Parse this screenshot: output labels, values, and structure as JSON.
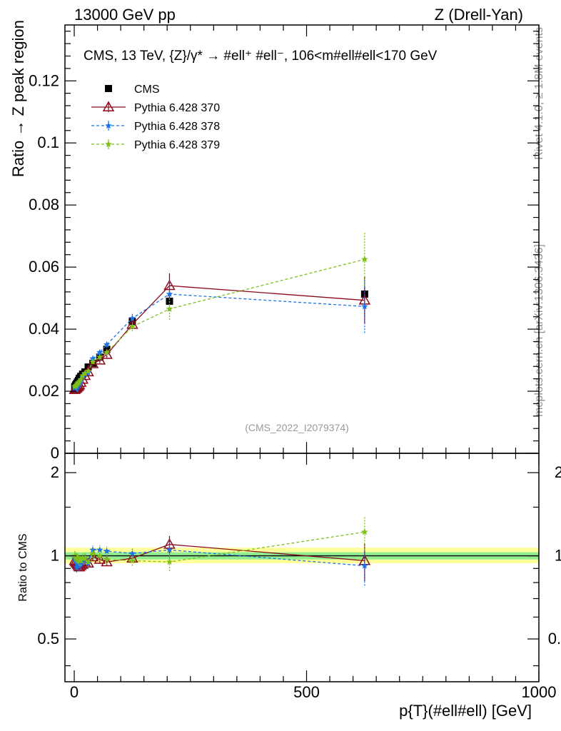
{
  "header": {
    "left": "13000 GeV pp",
    "right": "Z (Drell-Yan)"
  },
  "plot_title": "CMS, 13 TeV, {Z}/γ*  →  #ell⁺ #ell⁻,  106<m#ell#ell<170 GeV",
  "side_labels": {
    "rivet": "Rivet 4.1.0, ≥ 1.8M events",
    "mcplots": "mcplots.cern.ch [arXiv:1306.3436]"
  },
  "watermark": "(CMS_2022_I2079374)",
  "colors": {
    "cms": "#000000",
    "p370": "#8b0a1e",
    "p378": "#1a73e8",
    "p379": "#7fbf1a",
    "band_inner": "#90ee90",
    "band_outer": "#ffff99"
  },
  "chart_data": [
    {
      "type": "scatter",
      "title": "",
      "xlabel": "",
      "ylabel": "Ratio → Z peak region",
      "xlim": [
        -20,
        1000
      ],
      "ylim": [
        0,
        0.138
      ],
      "yticks": [
        0,
        0.02,
        0.04,
        0.06,
        0.08,
        0.1,
        0.12
      ],
      "ytick_labels": [
        "0",
        "0.02",
        "0.04",
        "0.06",
        "0.08",
        "0.1",
        "0.12"
      ],
      "legend_position": "top-left",
      "x": [
        1,
        3,
        5,
        7,
        9,
        11,
        14,
        18,
        23,
        30,
        40,
        55,
        70,
        125,
        205,
        625
      ],
      "series": [
        {
          "name": "CMS",
          "marker": "square",
          "line": "none",
          "values": [
            0.0215,
            0.022,
            0.0225,
            0.023,
            0.0235,
            0.0242,
            0.0248,
            0.0255,
            0.0262,
            0.0278,
            0.029,
            0.031,
            0.0335,
            0.0425,
            0.049,
            0.0513
          ],
          "errors": [
            0.0004,
            0.0004,
            0.0004,
            0.0004,
            0.0004,
            0.0004,
            0.0004,
            0.0004,
            0.0005,
            0.0005,
            0.0005,
            0.0006,
            0.0007,
            0.001,
            0.0012,
            0.002
          ]
        },
        {
          "name": "Pythia 6.428 370",
          "marker": "triangle",
          "line": "solid",
          "values": [
            0.0205,
            0.0208,
            0.021,
            0.0213,
            0.0216,
            0.022,
            0.0228,
            0.0238,
            0.025,
            0.0262,
            0.0288,
            0.03,
            0.0318,
            0.0415,
            0.054,
            0.0493
          ],
          "errors": [
            0.0006,
            0.0006,
            0.0006,
            0.0006,
            0.0006,
            0.0006,
            0.0006,
            0.0006,
            0.0007,
            0.0008,
            0.0008,
            0.0009,
            0.001,
            0.0015,
            0.004,
            0.0075
          ]
        },
        {
          "name": "Pythia 6.428 378",
          "marker": "star",
          "line": "dashed",
          "values": [
            0.021,
            0.0212,
            0.0205,
            0.0215,
            0.022,
            0.0222,
            0.023,
            0.0245,
            0.0255,
            0.026,
            0.0305,
            0.0325,
            0.035,
            0.0435,
            0.0513,
            0.0473
          ],
          "errors": [
            0.0006,
            0.0006,
            0.0006,
            0.0006,
            0.0006,
            0.0006,
            0.0006,
            0.0006,
            0.0007,
            0.0008,
            0.0008,
            0.0009,
            0.001,
            0.0018,
            0.0045,
            0.0085
          ]
        },
        {
          "name": "Pythia 6.428 379",
          "marker": "star",
          "line": "dashed",
          "values": [
            0.0215,
            0.0218,
            0.022,
            0.0225,
            0.0228,
            0.0232,
            0.0238,
            0.025,
            0.0258,
            0.0265,
            0.0295,
            0.031,
            0.0325,
            0.0408,
            0.0465,
            0.0625
          ],
          "errors": [
            0.0006,
            0.0006,
            0.0006,
            0.0006,
            0.0006,
            0.0006,
            0.0006,
            0.0006,
            0.0007,
            0.0008,
            0.0008,
            0.0009,
            0.001,
            0.0015,
            0.0035,
            0.0085
          ]
        }
      ]
    },
    {
      "type": "scatter",
      "title": "",
      "xlabel": "p{T}(#ell#ell) [GeV]",
      "ylabel": "Ratio to CMS",
      "xlim": [
        -20,
        1000
      ],
      "ylim": [
        0.35,
        2.35
      ],
      "scale": "log",
      "xticks": [
        0,
        500,
        1000
      ],
      "xtick_labels": [
        "0",
        "500",
        "1000"
      ],
      "yticks": [
        0.5,
        1,
        2
      ],
      "ytick_labels": [
        "0.5",
        "1",
        "2"
      ],
      "band": {
        "x": [
          -20,
          1000
        ],
        "inner": [
          0.97,
          1.03
        ],
        "outer": [
          0.94,
          1.07
        ]
      },
      "x": [
        1,
        3,
        5,
        7,
        9,
        11,
        14,
        18,
        23,
        30,
        40,
        55,
        70,
        125,
        205,
        625
      ],
      "series": [
        {
          "name": "Pythia 6.428 370",
          "marker": "triangle",
          "line": "solid",
          "values": [
            0.96,
            0.95,
            0.94,
            0.93,
            0.92,
            0.91,
            0.92,
            0.93,
            0.95,
            0.94,
            0.99,
            0.97,
            0.95,
            0.98,
            1.1,
            0.96
          ],
          "errors": [
            0.03,
            0.03,
            0.03,
            0.03,
            0.03,
            0.03,
            0.03,
            0.03,
            0.03,
            0.03,
            0.03,
            0.03,
            0.03,
            0.035,
            0.08,
            0.15
          ]
        },
        {
          "name": "Pythia 6.428 378",
          "marker": "star",
          "line": "dashed",
          "values": [
            0.98,
            0.96,
            0.91,
            0.93,
            0.94,
            0.92,
            0.93,
            0.96,
            0.97,
            0.94,
            1.05,
            1.05,
            1.04,
            1.02,
            1.05,
            0.92
          ],
          "errors": [
            0.04,
            0.04,
            0.04,
            0.04,
            0.04,
            0.04,
            0.04,
            0.04,
            0.04,
            0.04,
            0.04,
            0.04,
            0.04,
            0.04,
            0.09,
            0.14
          ]
        },
        {
          "name": "Pythia 6.428 379",
          "marker": "star",
          "line": "dashed",
          "values": [
            1.0,
            0.99,
            0.98,
            0.98,
            0.97,
            0.96,
            0.96,
            0.98,
            0.98,
            0.95,
            1.02,
            1.0,
            0.97,
            0.96,
            0.95,
            1.22
          ],
          "errors": [
            0.04,
            0.04,
            0.04,
            0.04,
            0.04,
            0.04,
            0.04,
            0.04,
            0.04,
            0.04,
            0.04,
            0.04,
            0.04,
            0.04,
            0.07,
            0.17
          ]
        }
      ]
    }
  ]
}
